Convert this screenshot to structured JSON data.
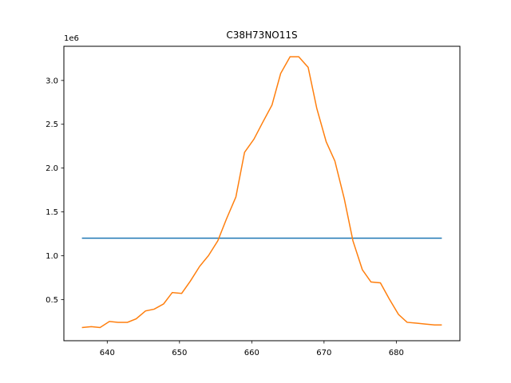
{
  "chart_data": {
    "type": "line",
    "title": "C38H73NO11S",
    "xlabel": "",
    "ylabel": "",
    "y_offset_label": "1e6",
    "xlim": [
      634.0,
      688.8
    ],
    "ylim": [
      0.03,
      3.39
    ],
    "y_scale_note": "values in units of 1e6",
    "xticks": [
      640,
      650,
      660,
      670,
      680
    ],
    "yticks": [
      0.5,
      1.0,
      1.5,
      2.0,
      2.5,
      3.0
    ],
    "ytick_labels": [
      "0.5",
      "1.0",
      "1.5",
      "2.0",
      "2.5",
      "3.0"
    ],
    "grid": false,
    "series": [
      {
        "color": "#1f77b4",
        "x": [
          636.5,
          686.3
        ],
        "y": [
          1.2,
          1.2
        ]
      },
      {
        "color": "#ff7f0e",
        "x": [
          636.5,
          637.8,
          639.0,
          640.3,
          641.5,
          642.8,
          644.0,
          645.3,
          646.5,
          647.8,
          649.0,
          650.3,
          651.5,
          652.8,
          654.0,
          655.3,
          656.5,
          657.8,
          659.0,
          660.3,
          661.5,
          662.8,
          664.0,
          665.3,
          666.5,
          667.8,
          669.0,
          670.3,
          671.5,
          672.8,
          674.0,
          675.3,
          676.5,
          677.8,
          679.0,
          680.3,
          681.5,
          682.8,
          684.0,
          685.3,
          686.3
        ],
        "y": [
          0.18,
          0.19,
          0.18,
          0.25,
          0.24,
          0.24,
          0.28,
          0.37,
          0.39,
          0.45,
          0.58,
          0.57,
          0.71,
          0.88,
          1.0,
          1.17,
          1.42,
          1.67,
          2.18,
          2.33,
          2.52,
          2.72,
          3.08,
          3.27,
          3.27,
          3.15,
          2.68,
          2.3,
          2.08,
          1.65,
          1.17,
          0.84,
          0.7,
          0.69,
          0.51,
          0.33,
          0.24,
          0.23,
          0.22,
          0.21,
          0.21
        ]
      }
    ]
  }
}
